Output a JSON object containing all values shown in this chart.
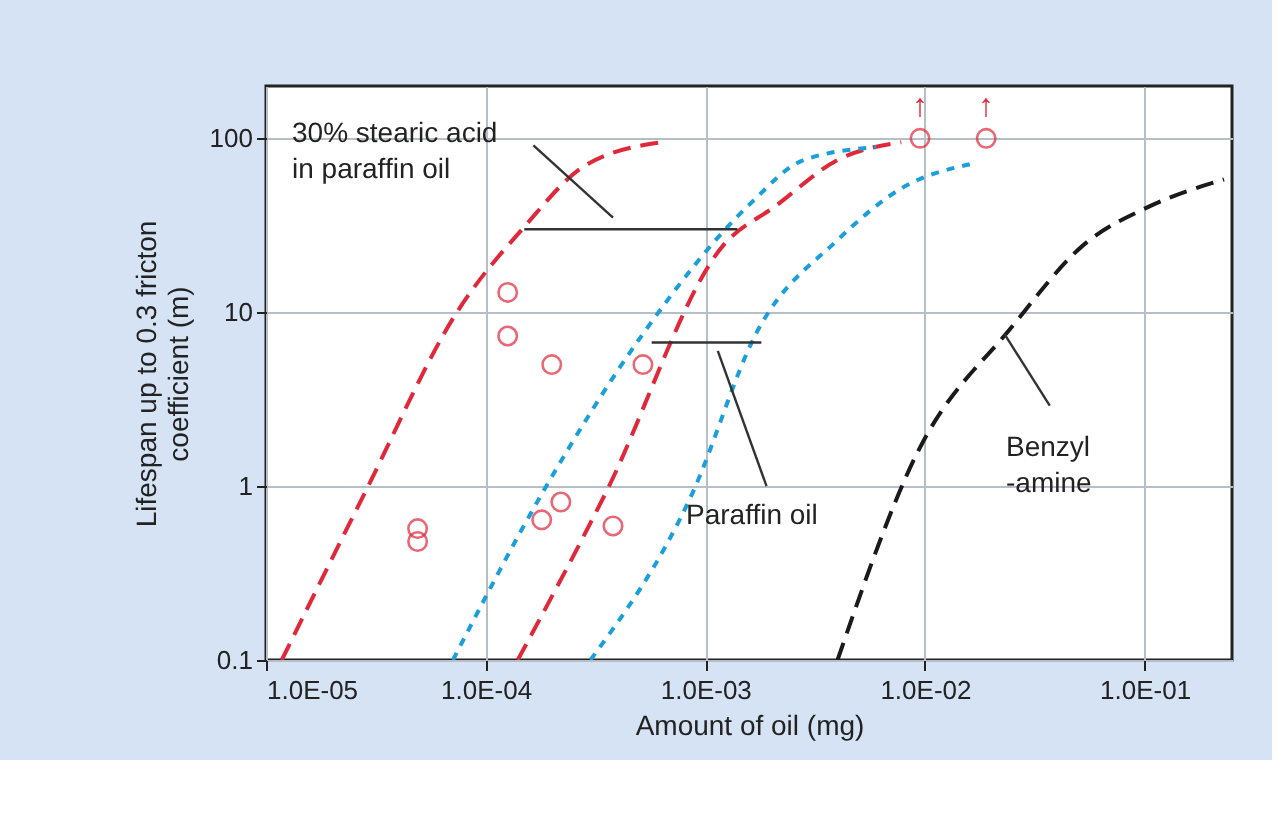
{
  "chart_data": {
    "type": "line",
    "xlabel": "Amount of oil (mg)",
    "ylabel": "Lifespan up to 0.3 fricton\ncoefficient (m)",
    "log": "xy",
    "grid": true,
    "xlim": [
      1e-05,
      0.25
    ],
    "ylim": [
      0.1,
      200
    ],
    "xticks": [
      {
        "value": 1e-05,
        "label": "1.0E-05"
      },
      {
        "value": 0.0001,
        "label": "1.0E-04"
      },
      {
        "value": 0.001,
        "label": "1.0E-03"
      },
      {
        "value": 0.01,
        "label": "1.0E-02"
      },
      {
        "value": 0.1,
        "label": "1.0E-01"
      }
    ],
    "yticks": [
      0.1,
      1,
      10,
      100
    ],
    "series": [
      {
        "line_style": "dashed",
        "color": "#e0283a",
        "x": [
          1.18e-05,
          2.8e-05,
          7.4e-05,
          0.00015,
          0.00028,
          0.00063
        ],
        "values": [
          0.1,
          0.9,
          10,
          31,
          69,
          95
        ]
      },
      {
        "type": "line",
        "line_style": "dashed",
        "color": "#e0283a",
        "x": [
          0.00014,
          0.00035,
          0.0012,
          0.0021,
          0.004,
          0.0078
        ],
        "values": [
          0.1,
          0.9,
          24,
          41,
          75,
          95
        ]
      },
      {
        "type": "line",
        "line_style": "dotted",
        "color": "#1a9fdb",
        "x": [
          7.1e-05,
          0.00018,
          0.00052,
          0.0016,
          0.0028,
          0.006
        ],
        "values": [
          0.1,
          0.9,
          7.5,
          42,
          75,
          89
        ]
      },
      {
        "type": "line",
        "line_style": "dotted",
        "color": "#1a9fdb",
        "x": [
          0.0003,
          0.00087,
          0.0017,
          0.004,
          0.0079,
          0.016
        ],
        "values": [
          0.1,
          0.9,
          7.5,
          26,
          52,
          71
        ]
      },
      {
        "type": "line",
        "line_style": "dashed",
        "color": "#1a1a1a",
        "x": [
          0.004,
          0.0091,
          0.025,
          0.052,
          0.107,
          0.23
        ],
        "values": [
          0.1,
          1.5,
          8.3,
          24,
          41,
          58
        ]
      },
      {
        "type": "line",
        "line_style": "solid",
        "color": "#333333",
        "x": [
          0.00015,
          0.0014
        ],
        "values": [
          30,
          30
        ]
      },
      {
        "type": "line",
        "line_style": "solid",
        "color": "#333333",
        "x": [
          0.00057,
          0.0018
        ],
        "values": [
          6.7,
          6.7
        ]
      },
      {
        "type": "line",
        "line_style": "solid",
        "color": "#333333",
        "x": [
          0.000165,
          0.00038
        ],
        "values": [
          91,
          35
        ]
      },
      {
        "type": "line",
        "line_style": "solid",
        "color": "#333333",
        "x": [
          0.00114,
          0.0019
        ],
        "values": [
          6.0,
          1.0
        ]
      },
      {
        "type": "line",
        "line_style": "solid",
        "color": "#333333",
        "x": [
          0.023,
          0.037
        ],
        "values": [
          7.5,
          2.9
        ]
      },
      {
        "type": "scatter",
        "marker": "circle",
        "color": "#e0283a",
        "x": [
          4.9e-05,
          4.9e-05,
          0.000126,
          0.000126,
          0.0002,
          0.00052,
          0.00018,
          0.00022,
          0.00038,
          0.0095,
          0.019
        ],
        "values": [
          0.57,
          0.48,
          13,
          7.3,
          5.0,
          5.0,
          0.64,
          0.81,
          0.59,
          100,
          100
        ]
      }
    ],
    "annotations": [
      "30% stearic acid\nin paraffin oil",
      "Paraffin oil",
      "Benzyl\n-amine",
      "↑",
      "↑"
    ]
  }
}
